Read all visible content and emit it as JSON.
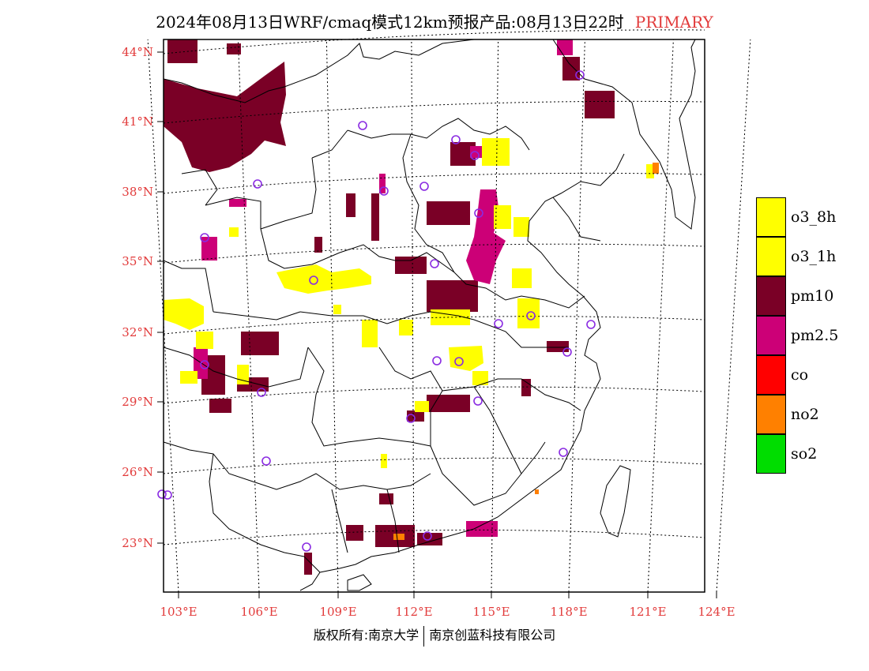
{
  "title": {
    "main": "2024年08月13日WRF/cmaq模式12km预报产品:08月13日22时",
    "flag": "PRIMARY"
  },
  "axes": {
    "lat_labels": [
      "44°N",
      "41°N",
      "38°N",
      "35°N",
      "32°N",
      "29°N",
      "26°N",
      "23°N"
    ],
    "lon_labels": [
      "103°E",
      "106°E",
      "109°E",
      "112°E",
      "115°E",
      "118°E",
      "121°E",
      "124°E"
    ]
  },
  "legend": [
    {
      "label": "o3_8h",
      "color": "#ffff00"
    },
    {
      "label": "o3_1h",
      "color": "#ffff00"
    },
    {
      "label": "pm10",
      "color": "#7a0026"
    },
    {
      "label": "pm2.5",
      "color": "#cc0077"
    },
    {
      "label": "co",
      "color": "#ff0000"
    },
    {
      "label": "no2",
      "color": "#ff8000"
    },
    {
      "label": "so2",
      "color": "#00dd00"
    }
  ],
  "colors": {
    "axis_labels": "#e23b3b",
    "station_marker": "#8a2be2"
  },
  "copyright": {
    "left": "版权所有:南京大学",
    "right": "南京创蓝科技有限公司"
  }
}
